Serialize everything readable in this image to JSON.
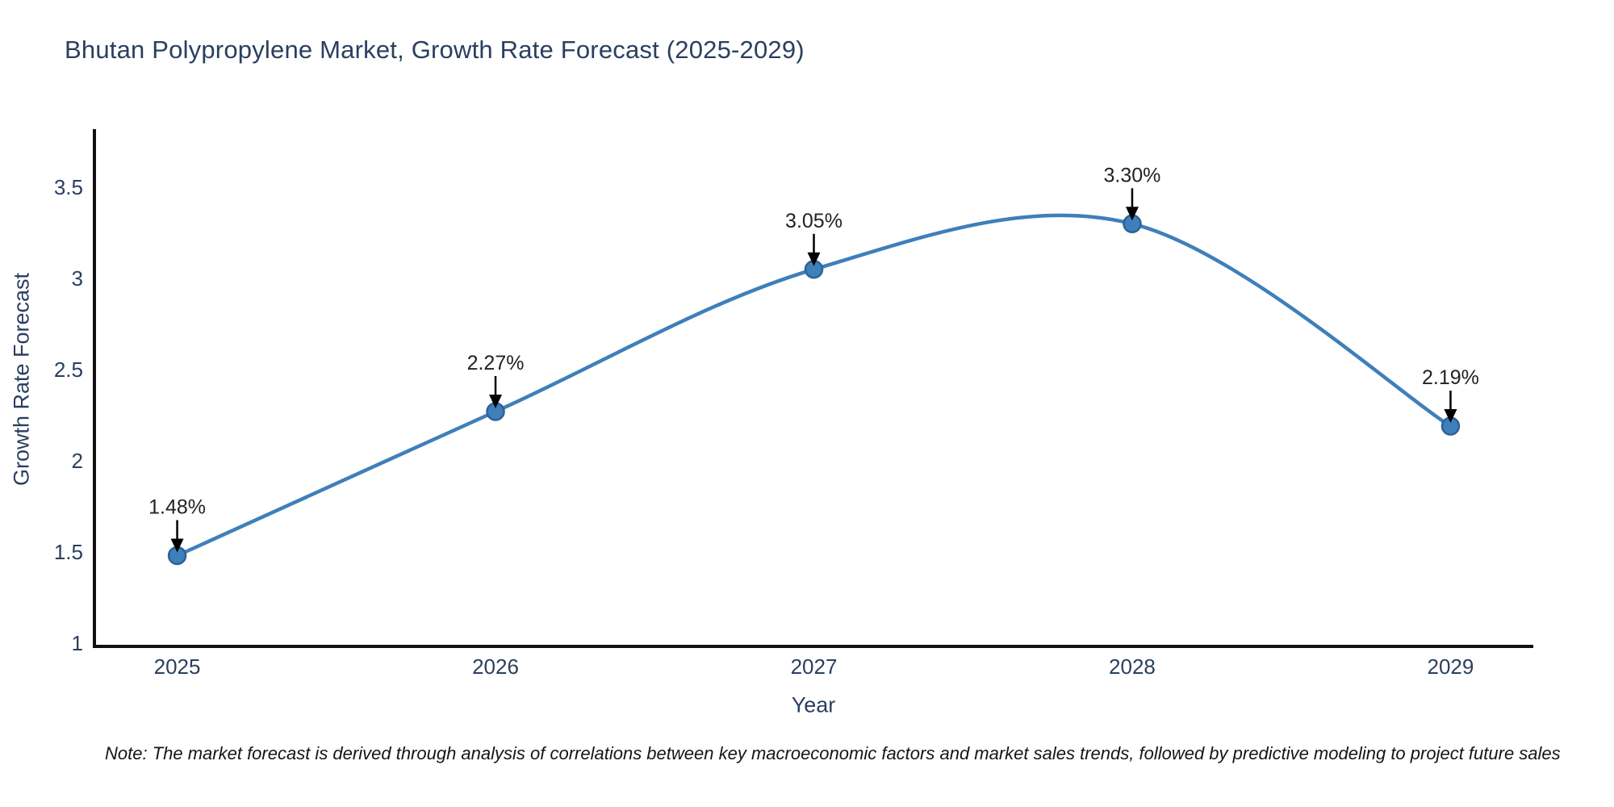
{
  "title": "Bhutan Polypropylene Market, Growth Rate Forecast (2025-2029)",
  "note": "Note: The market forecast is derived through analysis of correlations between key macroeconomic factors and market sales trends, followed by predictive modeling to project future sales",
  "chart_data": {
    "type": "line",
    "title": "Bhutan Polypropylene Market, Growth Rate Forecast (2025-2029)",
    "xlabel": "Year",
    "ylabel": "Growth Rate Forecast",
    "x": [
      2025,
      2026,
      2027,
      2028,
      2029
    ],
    "series": [
      {
        "name": "Growth Rate Forecast",
        "values": [
          1.48,
          2.27,
          3.05,
          3.3,
          2.19
        ]
      }
    ],
    "point_labels": [
      "1.48%",
      "2.27%",
      "3.05%",
      "3.30%",
      "2.19%"
    ],
    "yticks": [
      1,
      1.5,
      2,
      2.5,
      3,
      3.5
    ],
    "ylim": [
      0.982,
      3.819
    ],
    "xlim": [
      2024.74,
      2029.26
    ],
    "grid": false,
    "legend": "none",
    "curve": "smooth",
    "line_color": "#3f7fba",
    "marker_edge_color": "#2d6396",
    "annotation_text_color": "#222222",
    "annotation_arrow_color": "#000000",
    "axis_color": "#111111",
    "text_color": "#2a3f5f"
  }
}
